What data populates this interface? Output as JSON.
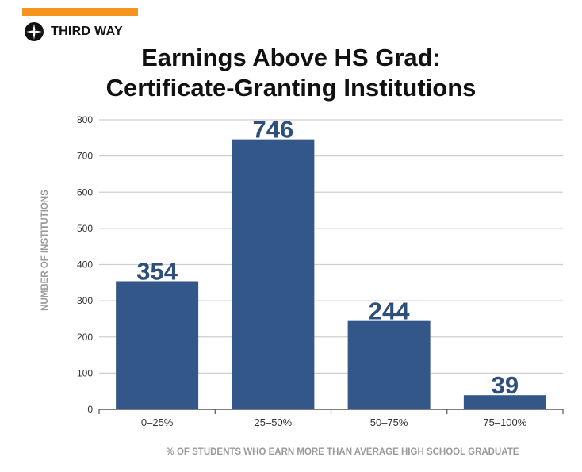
{
  "brand": {
    "name": "THIRD WAY",
    "accent_color": "#f7941d",
    "logo_icon": "compass-star-icon"
  },
  "chart_data": {
    "type": "bar",
    "title_lines": [
      "Earnings Above HS Grad:",
      "Certificate-Granting Institutions"
    ],
    "categories": [
      "0–25%",
      "25–50%",
      "50–75%",
      "75–100%"
    ],
    "values": [
      354,
      746,
      244,
      39
    ],
    "data_labels": [
      "354",
      "746",
      "244",
      "39"
    ],
    "xlabel": "% OF STUDENTS WHO EARN MORE THAN AVERAGE HIGH SCHOOL GRADUATE",
    "ylabel": "NUMBER OF INSTITUTIONS",
    "ylim": [
      0,
      800
    ],
    "yticks": [
      0,
      100,
      200,
      300,
      400,
      500,
      600,
      700,
      800
    ],
    "grid": true,
    "legend": "none",
    "bar_color": "#34578a",
    "label_color": "#2e4f7c"
  }
}
